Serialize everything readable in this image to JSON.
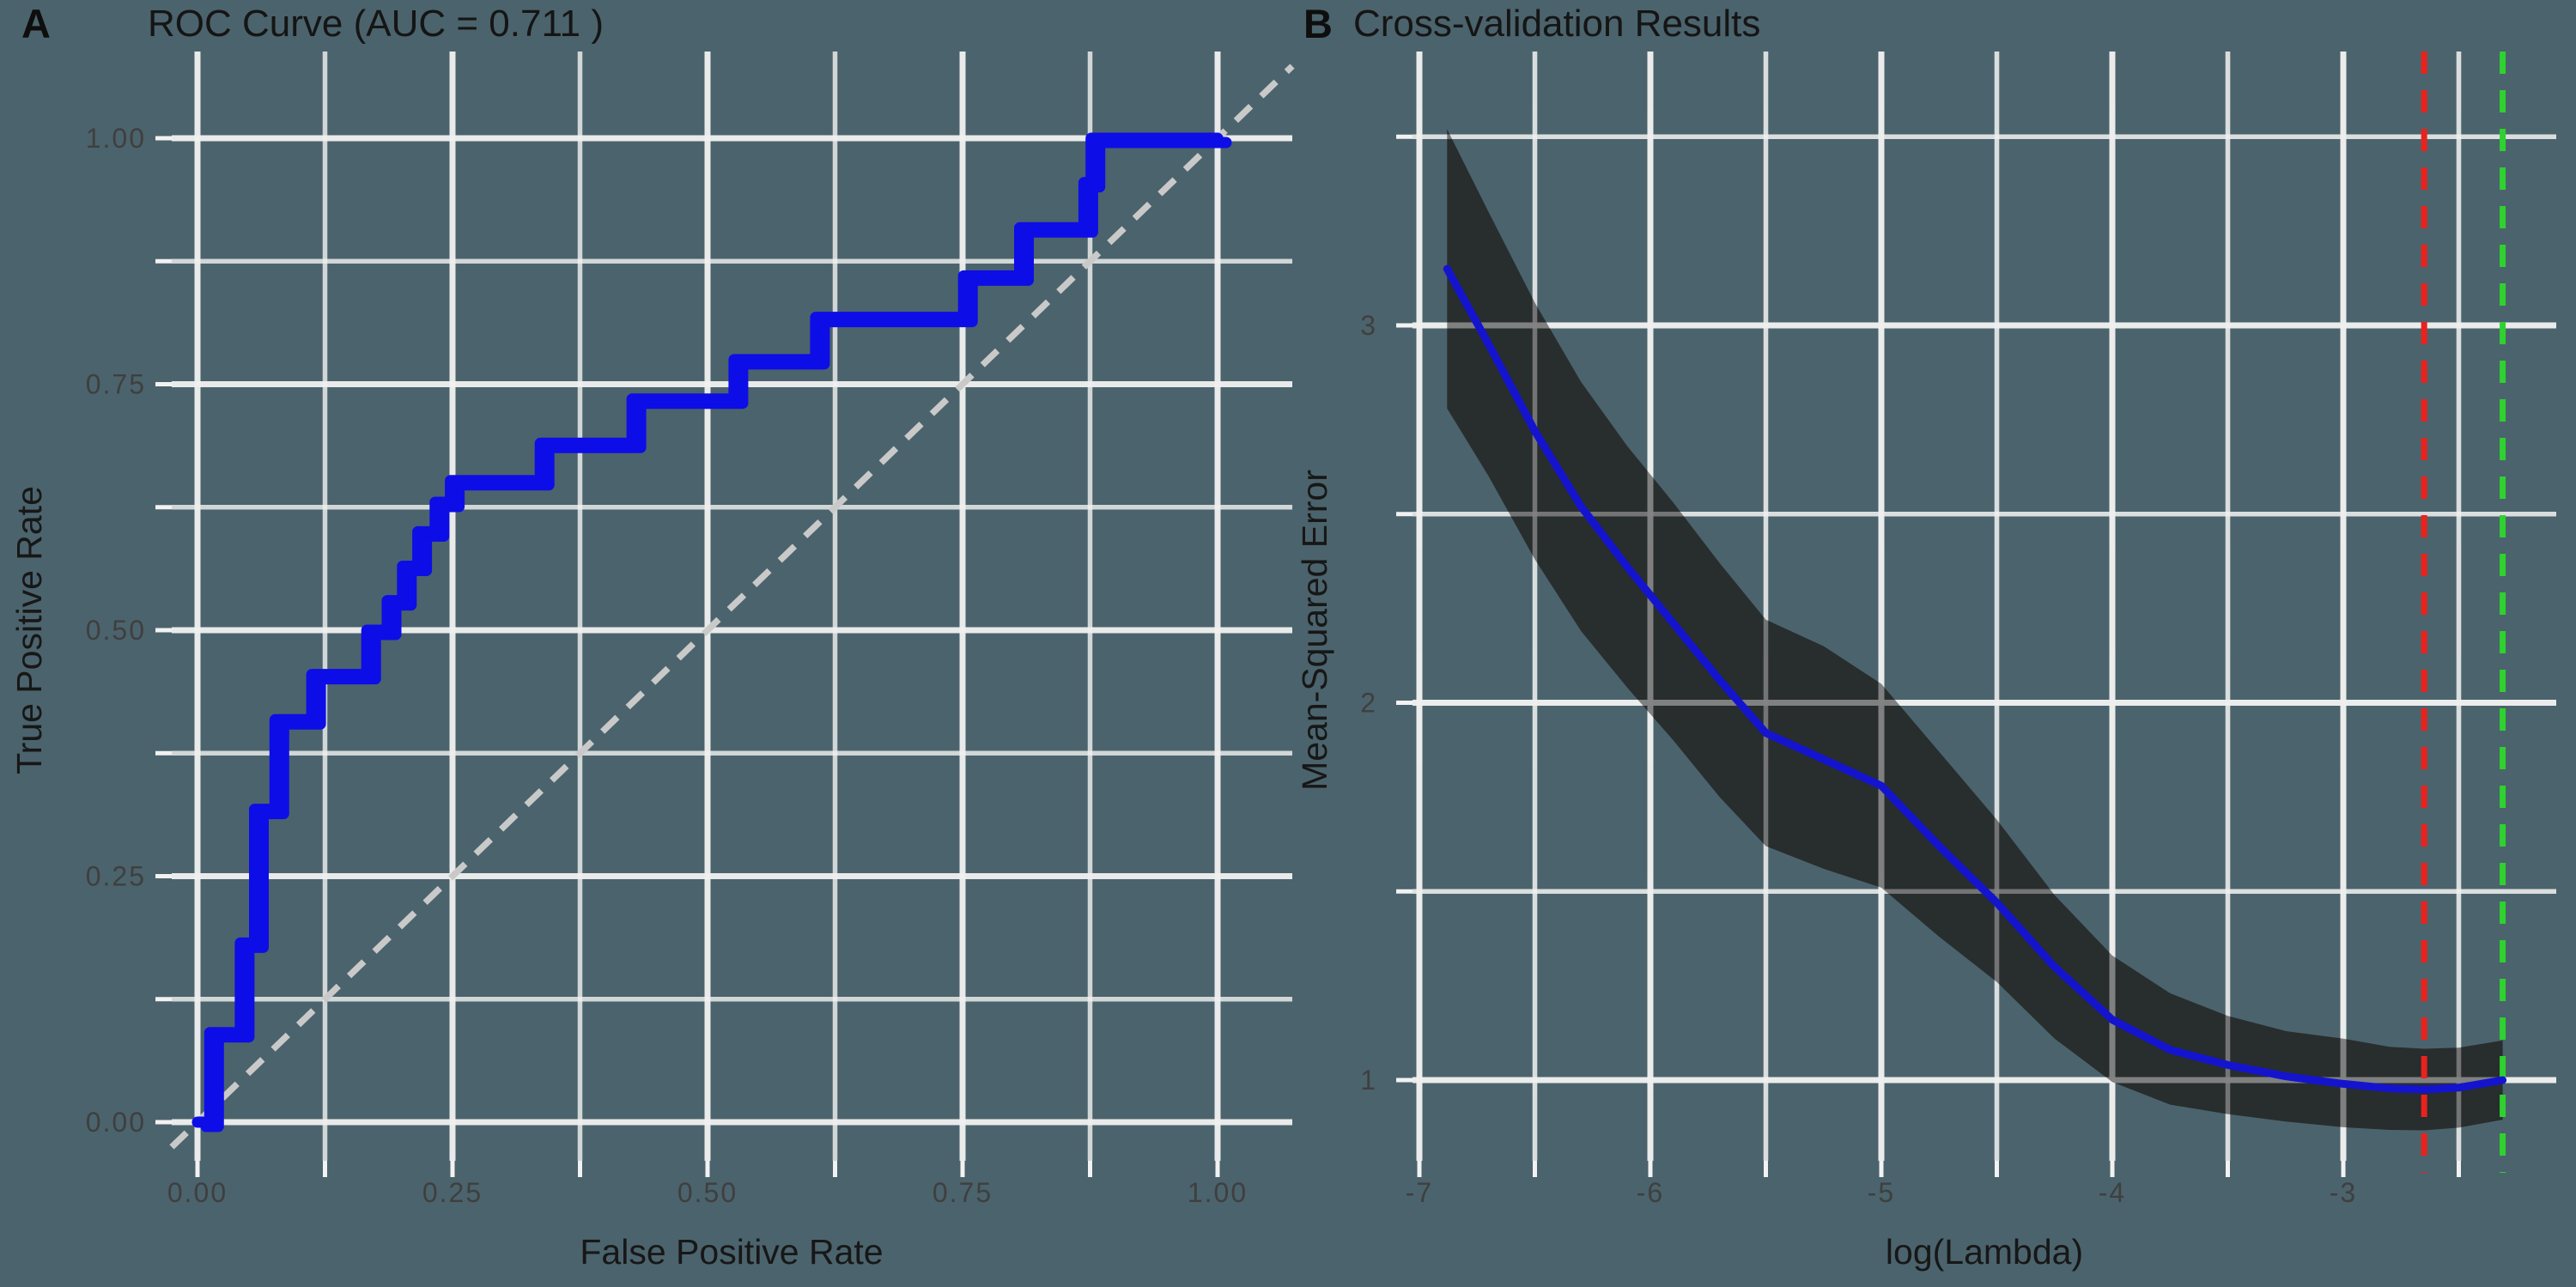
{
  "panelA": {
    "tag": "A",
    "title": "ROC Curve (AUC = 0.711 )",
    "xlabel": "False Positive Rate",
    "ylabel": "True Positive Rate",
    "auc": "0.711"
  },
  "panelB": {
    "tag": "B",
    "title": "Cross-validation Results",
    "xlabel": "log(Lambda)",
    "ylabel": "Mean-Squared Error"
  },
  "colors": {
    "background": "#4b636c",
    "gridline": "#efefef",
    "tick": "#f2f2f2",
    "roc_line": "#0d0de8",
    "cv_line": "#1414cf",
    "confidence_band": "#232424",
    "diagonal_reference": "#c9c9c9",
    "lambda_min_line": "#e8231e",
    "lambda_1se_line": "#2ed22e",
    "tick_text": "#3f3f3f",
    "title_text": "#151515"
  },
  "chart_data": [
    {
      "panel": "A",
      "type": "line",
      "subtype": "roc-step-curve",
      "title": "ROC Curve (AUC = 0.711 )",
      "xlabel": "False Positive Rate",
      "ylabel": "True Positive Rate",
      "auc": 0.711,
      "xlim": [
        0,
        1
      ],
      "ylim": [
        0,
        1
      ],
      "x_major_ticks": [
        0,
        0.25,
        0.5,
        0.75,
        1
      ],
      "x_tick_labels": [
        "0.00",
        "0.25",
        "0.50",
        "0.75",
        "1.00"
      ],
      "y_major_ticks": [
        0,
        0.25,
        0.5,
        0.75,
        1
      ],
      "y_tick_labels": [
        "0.00",
        "0.25",
        "0.50",
        "0.75",
        "1.00"
      ],
      "minor_grid_step": 0.125,
      "grid": true,
      "diagonal_reference": {
        "from": [
          0,
          0
        ],
        "to": [
          1,
          1
        ],
        "style": "dashed"
      },
      "roc_steps": [
        [
          0.012,
          0.091
        ],
        [
          0.042,
          0.182
        ],
        [
          0.056,
          0.318
        ],
        [
          0.076,
          0.409
        ],
        [
          0.112,
          0.455
        ],
        [
          0.166,
          0.5
        ],
        [
          0.186,
          0.53
        ],
        [
          0.201,
          0.565
        ],
        [
          0.216,
          0.6
        ],
        [
          0.233,
          0.63
        ],
        [
          0.248,
          0.652
        ],
        [
          0.336,
          0.69
        ],
        [
          0.426,
          0.735
        ],
        [
          0.526,
          0.775
        ],
        [
          0.606,
          0.818
        ],
        [
          0.751,
          0.86
        ],
        [
          0.806,
          0.909
        ],
        [
          0.869,
          0.955
        ],
        [
          0.876,
          1.0
        ],
        [
          1.0,
          1.0
        ]
      ]
    },
    {
      "panel": "B",
      "type": "area",
      "subtype": "cv-curve-with-band",
      "title": "Cross-validation Results",
      "xlabel": "log(Lambda)",
      "ylabel": "Mean-Squared Error",
      "xlim": [
        -7.1,
        -2.1
      ],
      "ylim": [
        0.79,
        3.73
      ],
      "x_major_ticks": [
        -7,
        -6,
        -5,
        -4,
        -3
      ],
      "x_tick_labels": [
        "-7",
        "-6",
        "-5",
        "-4",
        "-3"
      ],
      "y_major_ticks": [
        1,
        2,
        3
      ],
      "y_tick_labels": [
        "1",
        "2",
        "3"
      ],
      "x_minor_step": 0.5,
      "y_minor_step": 0.5,
      "grid": true,
      "x": [
        -6.88,
        -6.7,
        -6.5,
        -6.3,
        -6.1,
        -5.9,
        -5.7,
        -5.5,
        -5.25,
        -5.0,
        -4.75,
        -4.5,
        -4.25,
        -4.0,
        -3.75,
        -3.5,
        -3.25,
        -3.0,
        -2.8,
        -2.65,
        -2.5,
        -2.31
      ],
      "mse_mean": [
        3.15,
        2.95,
        2.72,
        2.52,
        2.36,
        2.21,
        2.06,
        1.92,
        1.85,
        1.78,
        1.62,
        1.47,
        1.3,
        1.16,
        1.08,
        1.04,
        1.01,
        0.99,
        0.978,
        0.975,
        0.98,
        1.0
      ],
      "mse_upper": [
        3.52,
        3.3,
        3.06,
        2.85,
        2.68,
        2.53,
        2.37,
        2.22,
        2.15,
        2.05,
        1.87,
        1.69,
        1.49,
        1.33,
        1.23,
        1.17,
        1.13,
        1.11,
        1.088,
        1.083,
        1.086,
        1.105
      ],
      "mse_lower": [
        2.78,
        2.6,
        2.38,
        2.19,
        2.04,
        1.9,
        1.75,
        1.62,
        1.56,
        1.51,
        1.38,
        1.26,
        1.11,
        0.995,
        0.935,
        0.91,
        0.89,
        0.875,
        0.868,
        0.867,
        0.874,
        0.895
      ],
      "vlines": [
        {
          "name": "lambda-min",
          "x": -2.65,
          "color": "#e8231e",
          "style": "dashed"
        },
        {
          "name": "lambda-1se",
          "x": -2.31,
          "color": "#2ed22e",
          "style": "dashed"
        }
      ]
    }
  ]
}
